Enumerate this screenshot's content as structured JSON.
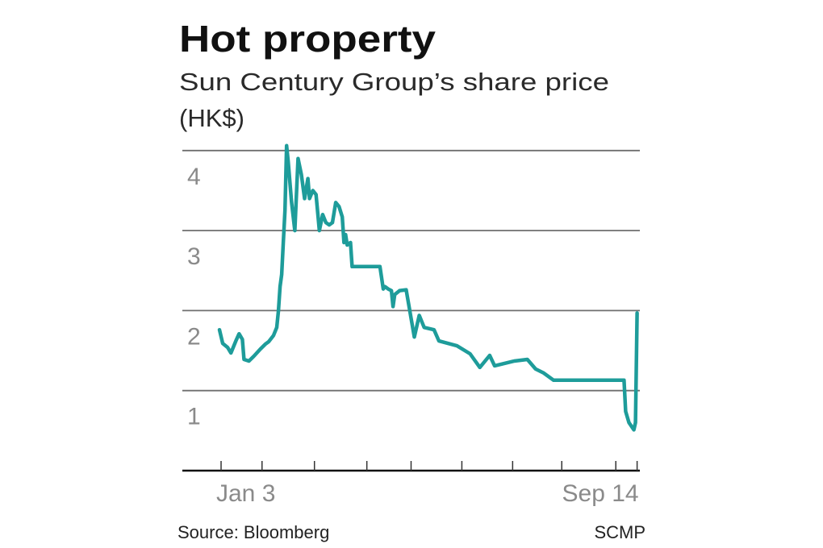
{
  "chart_data": {
    "type": "line",
    "title": "Hot property",
    "subtitle": "Sun Century Group’s share price",
    "ylabel": "(HK$)",
    "xlabel": "",
    "ylim": [
      0,
      4.2
    ],
    "y_ticks": [
      1,
      2,
      3,
      4
    ],
    "grid": true,
    "x_tick_labels": [
      {
        "date": "01-03",
        "label": "Jan 3"
      },
      {
        "date": "09-14",
        "label": "Sep 14"
      }
    ],
    "x_tick_marks": [
      "01-03",
      "01-28",
      "03-01",
      "04-02",
      "04-29",
      "05-30",
      "06-30",
      "07-30",
      "09-01",
      "09-14"
    ],
    "line_color": "#1e9c9a",
    "series": [
      {
        "points": [
          [
            "01-02",
            1.76
          ],
          [
            "01-04",
            1.59
          ],
          [
            "01-07",
            1.54
          ],
          [
            "01-09",
            1.47
          ],
          [
            "01-12",
            1.62
          ],
          [
            "01-14",
            1.71
          ],
          [
            "01-16",
            1.64
          ],
          [
            "01-17",
            1.39
          ],
          [
            "01-20",
            1.37
          ],
          [
            "01-23",
            1.43
          ],
          [
            "01-27",
            1.52
          ],
          [
            "01-30",
            1.58
          ],
          [
            "02-01",
            1.61
          ],
          [
            "02-04",
            1.69
          ],
          [
            "02-06",
            1.79
          ],
          [
            "02-07",
            2.0
          ],
          [
            "02-08",
            2.3
          ],
          [
            "02-09",
            2.45
          ],
          [
            "02-10",
            2.85
          ],
          [
            "02-11",
            3.25
          ],
          [
            "02-12",
            4.06
          ],
          [
            "02-13",
            3.86
          ],
          [
            "02-15",
            3.36
          ],
          [
            "02-17",
            3.0
          ],
          [
            "02-19",
            3.9
          ],
          [
            "02-21",
            3.7
          ],
          [
            "02-23",
            3.4
          ],
          [
            "02-25",
            3.65
          ],
          [
            "02-26",
            3.4
          ],
          [
            "02-28",
            3.5
          ],
          [
            "03-02",
            3.45
          ],
          [
            "03-04",
            3.0
          ],
          [
            "03-06",
            3.2
          ],
          [
            "03-08",
            3.1
          ],
          [
            "03-10",
            3.07
          ],
          [
            "03-12",
            3.1
          ],
          [
            "03-14",
            3.35
          ],
          [
            "03-16",
            3.3
          ],
          [
            "03-18",
            3.17
          ],
          [
            "03-19",
            2.85
          ],
          [
            "03-20",
            2.95
          ],
          [
            "03-21",
            2.82
          ],
          [
            "03-23",
            2.85
          ],
          [
            "03-24",
            2.55
          ],
          [
            "04-10",
            2.55
          ],
          [
            "04-12",
            2.27
          ],
          [
            "04-13",
            2.3
          ],
          [
            "04-15",
            2.27
          ],
          [
            "04-17",
            2.25
          ],
          [
            "04-18",
            2.05
          ],
          [
            "04-19",
            2.2
          ],
          [
            "04-22",
            2.25
          ],
          [
            "04-26",
            2.26
          ],
          [
            "05-01",
            1.67
          ],
          [
            "05-04",
            1.94
          ],
          [
            "05-07",
            1.79
          ],
          [
            "05-13",
            1.76
          ],
          [
            "05-16",
            1.62
          ],
          [
            "05-27",
            1.56
          ],
          [
            "06-04",
            1.46
          ],
          [
            "06-10",
            1.29
          ],
          [
            "06-16",
            1.44
          ],
          [
            "06-19",
            1.31
          ],
          [
            "07-01",
            1.37
          ],
          [
            "07-09",
            1.39
          ],
          [
            "07-14",
            1.27
          ],
          [
            "07-19",
            1.22
          ],
          [
            "07-25",
            1.13
          ],
          [
            "09-06",
            1.13
          ],
          [
            "09-07",
            0.74
          ],
          [
            "09-09",
            0.6
          ],
          [
            "09-12",
            0.51
          ],
          [
            "09-13",
            0.6
          ],
          [
            "09-14",
            1.97
          ]
        ]
      }
    ]
  },
  "footer": {
    "source": "Source: Bloomberg",
    "credit": "SCMP"
  }
}
